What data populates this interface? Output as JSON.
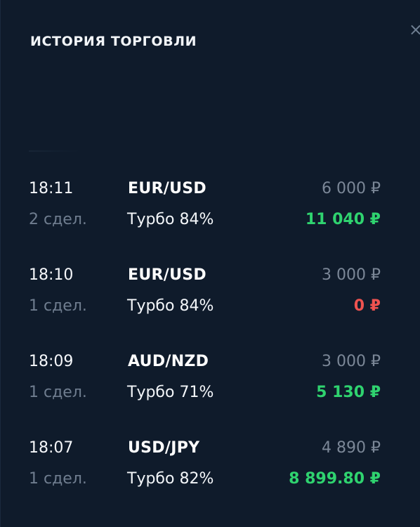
{
  "header": {
    "title": "ИСТОРИЯ ТОРГОВЛИ",
    "close_label": "×"
  },
  "trades": [
    {
      "time": "18:11",
      "pair": "EUR/USD",
      "amount": "6 000 ₽",
      "deals": "2 сдел.",
      "mode": "Турбо 84%",
      "result": "11 040 ₽",
      "result_color": "#2fd36f"
    },
    {
      "time": "18:10",
      "pair": "EUR/USD",
      "amount": "3 000 ₽",
      "deals": "1 сдел.",
      "mode": "Турбо 84%",
      "result": "0 ₽",
      "result_color": "#ef5350"
    },
    {
      "time": "18:09",
      "pair": "AUD/NZD",
      "amount": "3 000 ₽",
      "deals": "1 сдел.",
      "mode": "Турбо 71%",
      "result": "5 130 ₽",
      "result_color": "#2fd36f"
    },
    {
      "time": "18:07",
      "pair": "USD/JPY",
      "amount": "4 890 ₽",
      "deals": "1 сдел.",
      "mode": "Турбо 82%",
      "result": "8 899.80 ₽",
      "result_color": "#2fd36f"
    }
  ]
}
